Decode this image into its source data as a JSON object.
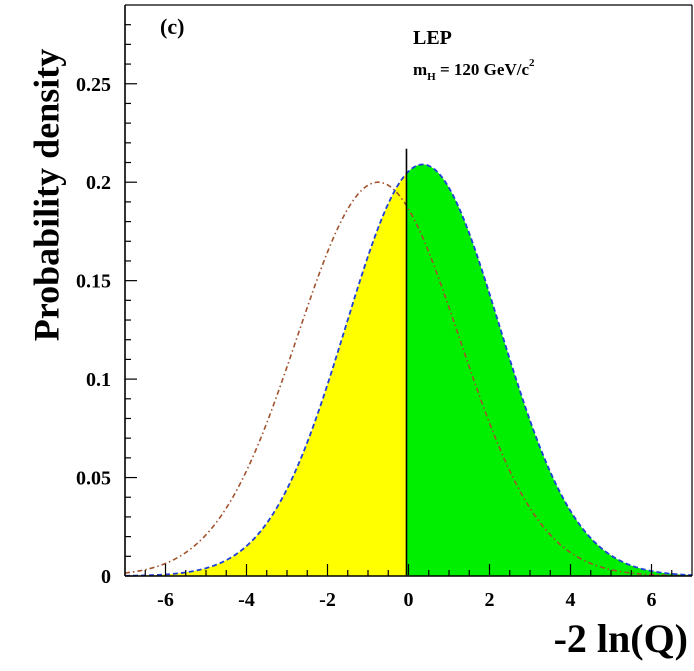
{
  "chart_data": {
    "type": "area",
    "panel_label": "(c)",
    "annotations": {
      "experiment": "LEP",
      "mass_prefix": "m",
      "mass_subscript": "H",
      "mass_value": " = 120 GeV/c",
      "mass_superscript": "2"
    },
    "xlabel": "-2 ln(Q)",
    "ylabel": "Probability density",
    "xlim": [
      -7,
      7
    ],
    "ylim": [
      0,
      0.29
    ],
    "x_ticks": [
      -6,
      -4,
      -2,
      0,
      2,
      4,
      6
    ],
    "x_tick_labels": [
      "-6",
      "-4",
      "-2",
      "0",
      "2",
      "4",
      "6"
    ],
    "y_ticks": [
      0,
      0.05,
      0.1,
      0.15,
      0.2,
      0.25
    ],
    "y_tick_labels": [
      "0",
      "0.05",
      "0.1",
      "0.15",
      "0.2",
      "0.25"
    ],
    "observed_x": -0.05,
    "observed_line_top": 0.217,
    "series": [
      {
        "style": "dashed",
        "color": "#1f3fd8",
        "mean": 0.35,
        "sigma": 1.9,
        "peak": 0.209
      },
      {
        "style": "dash-dot",
        "color": "#a0522d",
        "mean": -0.75,
        "sigma": 2.0,
        "peak": 0.2
      }
    ],
    "fill_left_color": "#ffff00",
    "fill_right_color": "#00ee00",
    "grid": false,
    "legend": "none"
  }
}
